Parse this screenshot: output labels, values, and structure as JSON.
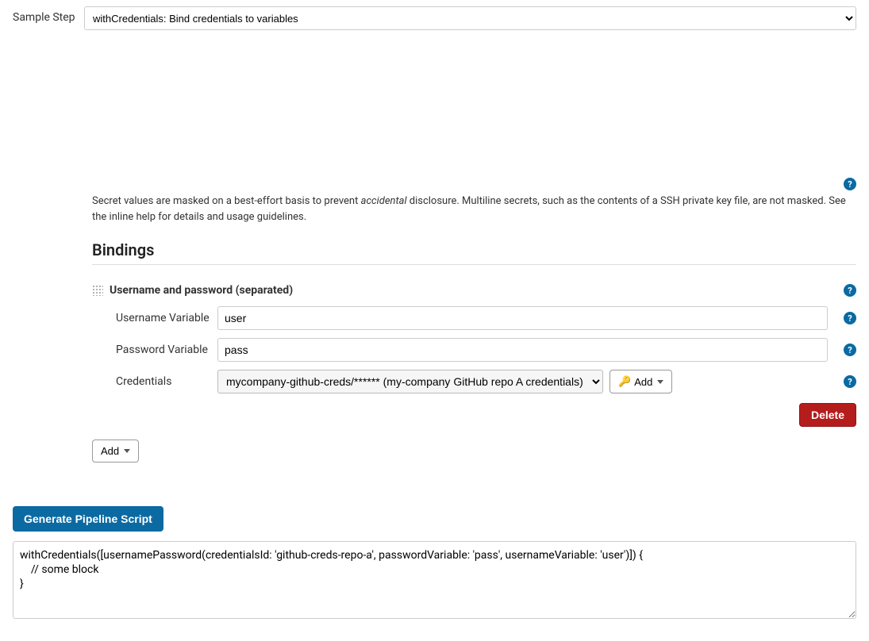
{
  "colors": {
    "accent_blue": "#0b6aa2",
    "danger_red": "#b51d1d",
    "border_gray": "#cccccc",
    "text": "#333333",
    "background": "#ffffff"
  },
  "sample_step": {
    "label": "Sample Step",
    "selected": "withCredentials: Bind credentials to variables"
  },
  "info": {
    "text_prefix": "Secret values are masked on a best-effort basis to prevent ",
    "text_emph": "accidental",
    "text_suffix": " disclosure. Multiline secrets, such as the contents of a SSH private key file, are not masked. See the inline help for details and usage guidelines."
  },
  "bindings": {
    "section_title": "Bindings",
    "item_title": "Username and password (separated)",
    "username_variable": {
      "label": "Username Variable",
      "value": "user"
    },
    "password_variable": {
      "label": "Password Variable",
      "value": "pass"
    },
    "credentials": {
      "label": "Credentials",
      "selected": "mycompany-github-creds/****** (my-company GitHub repo A credentials)",
      "add_label": "Add"
    },
    "delete_label": "Delete",
    "add_binding_label": "Add"
  },
  "generate": {
    "button_label": "Generate Pipeline Script",
    "output": "withCredentials([usernamePassword(credentialsId: 'github-creds-repo-a', passwordVariable: 'pass', usernameVariable: 'user')]) {\n    // some block\n}"
  }
}
